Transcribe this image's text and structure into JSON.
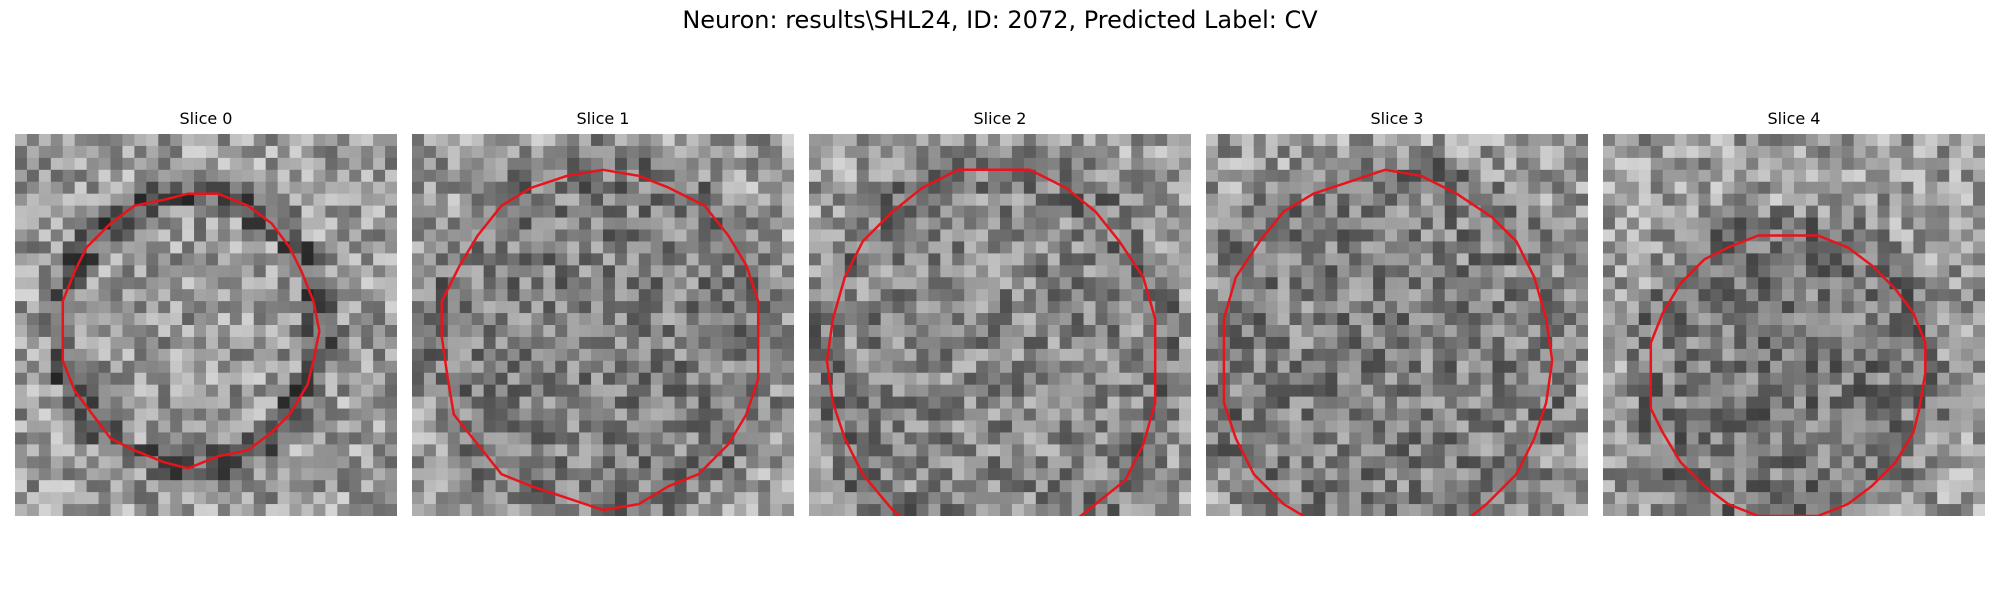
{
  "figure": {
    "title": "Neuron: results\\SHL24, ID: 2072, Predicted Label: CV"
  },
  "colors": {
    "contour": "#e8141c"
  },
  "slices": [
    {
      "label": "Slice 0"
    },
    {
      "label": "Slice 1"
    },
    {
      "label": "Slice 2"
    },
    {
      "label": "Slice 3"
    },
    {
      "label": "Slice 4"
    }
  ]
}
